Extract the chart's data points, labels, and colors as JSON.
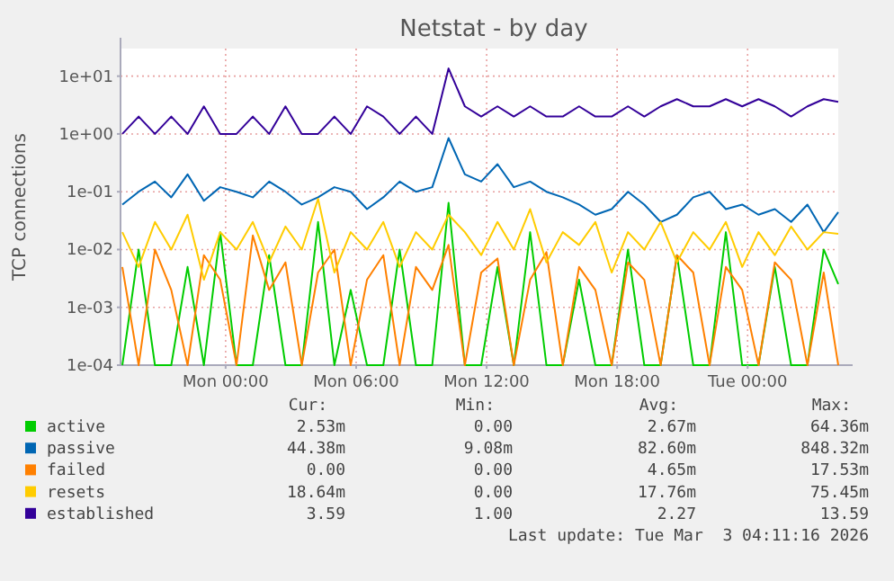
{
  "chart_data": {
    "type": "line",
    "title": "Netstat - by day",
    "ylabel": "TCP connections",
    "log": "y",
    "grid": true,
    "legend": "bottom",
    "marker": "none",
    "line_style": "solid",
    "xlim": [
      "2026-03-01T19:10",
      "2026-03-03T04:10"
    ],
    "xticks": [
      {
        "value": "2026-03-02T00:00",
        "label": "Mon 00:00"
      },
      {
        "value": "2026-03-02T06:00",
        "label": "Mon 06:00"
      },
      {
        "value": "2026-03-02T12:00",
        "label": "Mon 12:00"
      },
      {
        "value": "2026-03-02T18:00",
        "label": "Mon 18:00"
      },
      {
        "value": "2026-03-03T00:00",
        "label": "Tue 00:00"
      }
    ],
    "ylim": [
      0.0001,
      30
    ],
    "yticks": [
      {
        "value": 0.0001,
        "label": "1e-04"
      },
      {
        "value": 0.001,
        "label": "1e-03"
      },
      {
        "value": 0.01,
        "label": "1e-02"
      },
      {
        "value": 0.1,
        "label": "1e-01"
      },
      {
        "value": 1,
        "label": "1e+00"
      },
      {
        "value": 10,
        "label": "1e+01"
      }
    ],
    "x": [
      "2026-03-01T19:15",
      "2026-03-01T20:00",
      "2026-03-01T20:45",
      "2026-03-01T21:30",
      "2026-03-01T22:15",
      "2026-03-01T23:00",
      "2026-03-01T23:45",
      "2026-03-02T00:30",
      "2026-03-02T01:15",
      "2026-03-02T02:00",
      "2026-03-02T02:45",
      "2026-03-02T03:30",
      "2026-03-02T04:15",
      "2026-03-02T05:00",
      "2026-03-02T05:45",
      "2026-03-02T06:30",
      "2026-03-02T07:15",
      "2026-03-02T08:00",
      "2026-03-02T08:45",
      "2026-03-02T09:30",
      "2026-03-02T10:15",
      "2026-03-02T11:00",
      "2026-03-02T11:45",
      "2026-03-02T12:30",
      "2026-03-02T13:15",
      "2026-03-02T14:00",
      "2026-03-02T14:45",
      "2026-03-02T15:30",
      "2026-03-02T16:15",
      "2026-03-02T17:00",
      "2026-03-02T17:45",
      "2026-03-02T18:30",
      "2026-03-02T19:15",
      "2026-03-02T20:00",
      "2026-03-02T20:45",
      "2026-03-02T21:30",
      "2026-03-02T22:15",
      "2026-03-02T23:00",
      "2026-03-02T23:45",
      "2026-03-03T00:30",
      "2026-03-03T01:15",
      "2026-03-03T02:00",
      "2026-03-03T02:45",
      "2026-03-03T03:30",
      "2026-03-03T04:10"
    ],
    "series": [
      {
        "name": "active",
        "color": "#00cc00",
        "values": [
          0.0001,
          0.01,
          0.0001,
          0.0001,
          0.005,
          0.0001,
          0.02,
          0.0001,
          0.0001,
          0.008,
          0.0001,
          0.0001,
          0.03,
          0.0001,
          0.002,
          0.0001,
          0.0001,
          0.01,
          0.0001,
          0.0001,
          0.06436,
          0.0001,
          0.0001,
          0.005,
          0.0001,
          0.02,
          0.0001,
          0.0001,
          0.003,
          0.0001,
          0.0001,
          0.01,
          0.0001,
          0.0001,
          0.008,
          0.0001,
          0.0001,
          0.02,
          0.0001,
          0.0001,
          0.005,
          0.0001,
          0.0001,
          0.01,
          0.00253
        ]
      },
      {
        "name": "passive",
        "color": "#0066b3",
        "values": [
          0.06,
          0.1,
          0.15,
          0.08,
          0.2,
          0.07,
          0.12,
          0.1,
          0.08,
          0.15,
          0.1,
          0.06,
          0.08,
          0.12,
          0.1,
          0.05,
          0.08,
          0.15,
          0.1,
          0.12,
          0.848,
          0.2,
          0.15,
          0.3,
          0.12,
          0.15,
          0.1,
          0.08,
          0.06,
          0.04,
          0.05,
          0.1,
          0.06,
          0.03,
          0.04,
          0.08,
          0.1,
          0.05,
          0.06,
          0.04,
          0.05,
          0.03,
          0.06,
          0.02,
          0.04438
        ]
      },
      {
        "name": "failed",
        "color": "#ff8000",
        "values": [
          0.005,
          0.0001,
          0.01,
          0.002,
          0.0001,
          0.008,
          0.003,
          0.0001,
          0.0175,
          0.002,
          0.006,
          0.0001,
          0.004,
          0.01,
          0.0001,
          0.003,
          0.008,
          0.0001,
          0.005,
          0.002,
          0.012,
          0.0001,
          0.004,
          0.007,
          0.0001,
          0.003,
          0.009,
          0.0001,
          0.005,
          0.002,
          0.0001,
          0.006,
          0.003,
          0.0001,
          0.008,
          0.004,
          0.0001,
          0.005,
          0.002,
          0.0001,
          0.006,
          0.003,
          0.0001,
          0.004,
          0.0001
        ]
      },
      {
        "name": "resets",
        "color": "#ffcc00",
        "values": [
          0.02,
          0.005,
          0.03,
          0.01,
          0.04,
          0.003,
          0.02,
          0.01,
          0.03,
          0.006,
          0.025,
          0.01,
          0.0755,
          0.004,
          0.02,
          0.01,
          0.03,
          0.005,
          0.02,
          0.01,
          0.04,
          0.02,
          0.008,
          0.03,
          0.01,
          0.05,
          0.006,
          0.02,
          0.012,
          0.03,
          0.004,
          0.02,
          0.01,
          0.03,
          0.006,
          0.02,
          0.01,
          0.03,
          0.005,
          0.02,
          0.008,
          0.025,
          0.01,
          0.02,
          0.01864
        ]
      },
      {
        "name": "established",
        "color": "#330099",
        "values": [
          1,
          2,
          1,
          2,
          1,
          3,
          1,
          1,
          2,
          1,
          3,
          1,
          1,
          2,
          1,
          3,
          2,
          1,
          2,
          1,
          13.59,
          3,
          2,
          3,
          2,
          3,
          2,
          2,
          3,
          2,
          2,
          3,
          2,
          3,
          4,
          3,
          3,
          4,
          3,
          4,
          3,
          2,
          3,
          4,
          3.59
        ]
      }
    ],
    "annotations": [
      "Cur:",
      "Min:",
      "Avg:",
      "Max:",
      "2.53m",
      "0.00",
      "2.67m",
      "64.36m",
      "44.38m",
      "9.08m",
      "82.60m",
      "848.32m",
      "0.00",
      "0.00",
      "4.65m",
      "17.53m",
      "18.64m",
      "0.00",
      "17.76m",
      "75.45m",
      "3.59",
      "1.00",
      "2.27",
      "13.59",
      "Last update: Tue Mar  3 04:11:16 2026"
    ]
  }
}
